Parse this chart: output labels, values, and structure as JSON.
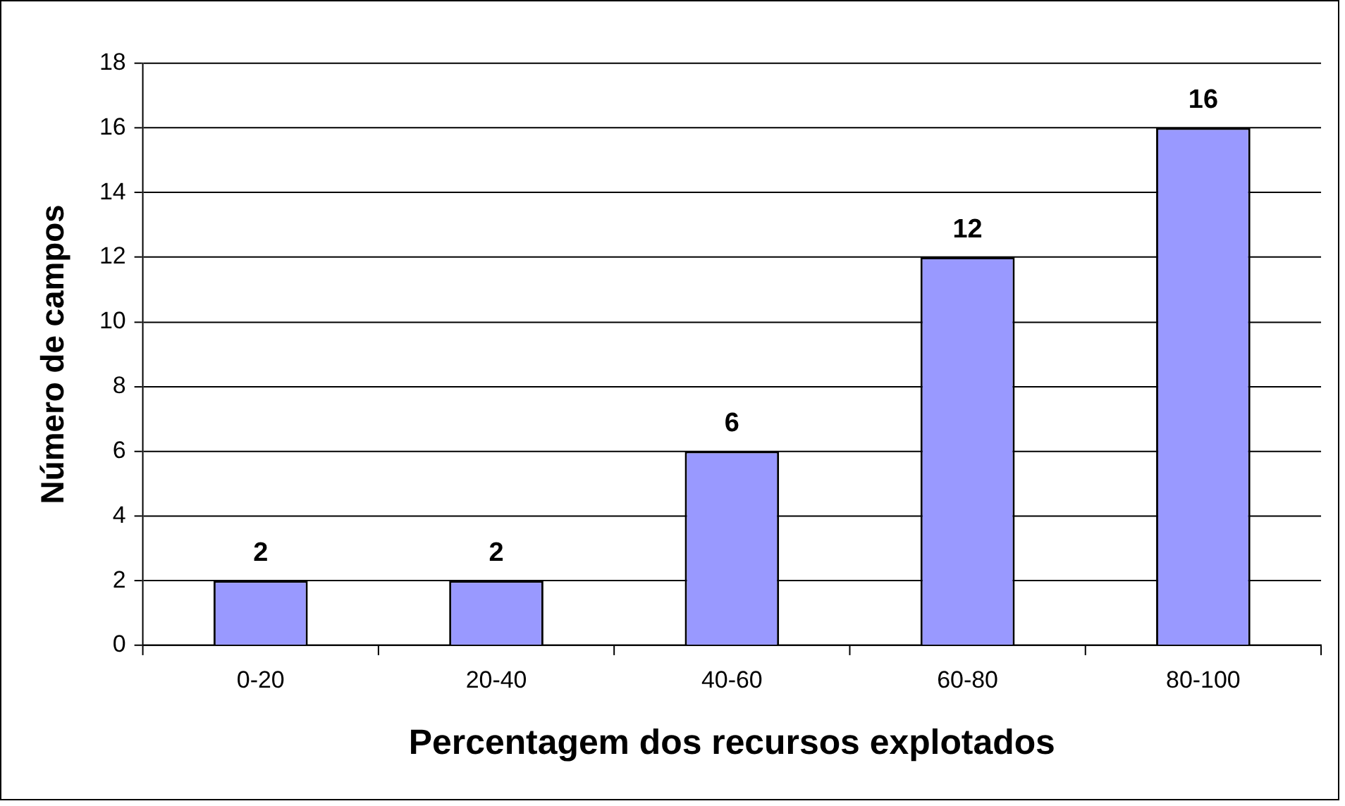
{
  "chart_data": {
    "type": "bar",
    "xlabel": "Percentagem dos recursos explotados",
    "ylabel": "Número de campos",
    "categories": [
      "0-20",
      "20-40",
      "40-60",
      "60-80",
      "80-100"
    ],
    "values": [
      2,
      2,
      6,
      12,
      16
    ],
    "color": "#9999ff",
    "ylim": [
      0,
      18
    ],
    "yticks": [
      0,
      2,
      4,
      6,
      8,
      10,
      12,
      14,
      16,
      18
    ],
    "grid": "y",
    "legend": false,
    "data_labels": true
  }
}
